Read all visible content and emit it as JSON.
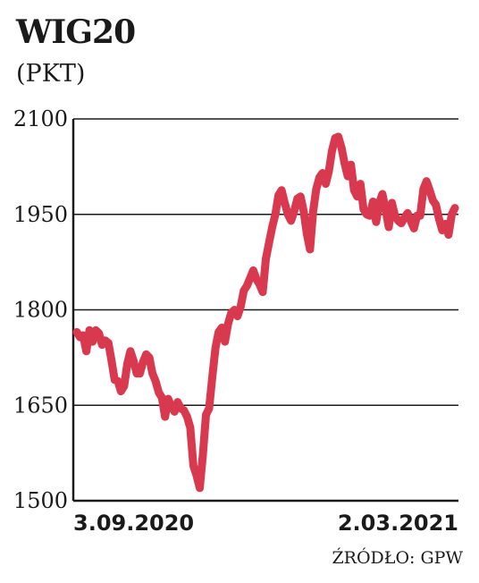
{
  "chart_data": {
    "type": "line",
    "title": "WIG20",
    "subtitle": "(PKT)",
    "source": "ŹRÓDŁO: GPW",
    "ylim": [
      1500,
      2100
    ],
    "y_ticks": [
      "1500",
      "1650",
      "1800",
      "1950",
      "2100"
    ],
    "x_tick_labels": [
      {
        "label": "3.09.2020",
        "anchor": "start"
      },
      {
        "label": "2.03.2021",
        "anchor": "end"
      }
    ],
    "grid": true,
    "line_color": "#d9394f",
    "series": [
      {
        "values": [
          1765,
          1757,
          1760,
          1735,
          1768,
          1750,
          1768,
          1763,
          1745,
          1752,
          1748,
          1720,
          1690,
          1688,
          1672,
          1680,
          1715,
          1735,
          1720,
          1700,
          1700,
          1718,
          1730,
          1725,
          1700,
          1688,
          1670,
          1662,
          1632,
          1660,
          1648,
          1640,
          1655,
          1645,
          1642,
          1632,
          1615,
          1555,
          1540,
          1520,
          1572,
          1635,
          1645,
          1695,
          1740,
          1765,
          1772,
          1750,
          1778,
          1795,
          1800,
          1790,
          1805,
          1830,
          1838,
          1850,
          1862,
          1848,
          1840,
          1828,
          1880,
          1905,
          1930,
          1950,
          1980,
          1988,
          1968,
          1950,
          1940,
          1955,
          1975,
          1978,
          1955,
          1920,
          1895,
          1955,
          1990,
          2008,
          2015,
          1998,
          2018,
          2050,
          2070,
          2072,
          2055,
          2030,
          2010,
          2028,
          1988,
          1978,
          1998,
          1958,
          1950,
          1948,
          1970,
          1938,
          1968,
          1982,
          1958,
          1930,
          1968,
          1948,
          1940,
          1936,
          1945,
          1952,
          1940,
          1928,
          1948,
          1948,
          1990,
          2002,
          1988,
          1972,
          1965,
          1942,
          1925,
          1935,
          1918,
          1950,
          1960
        ]
      }
    ]
  }
}
